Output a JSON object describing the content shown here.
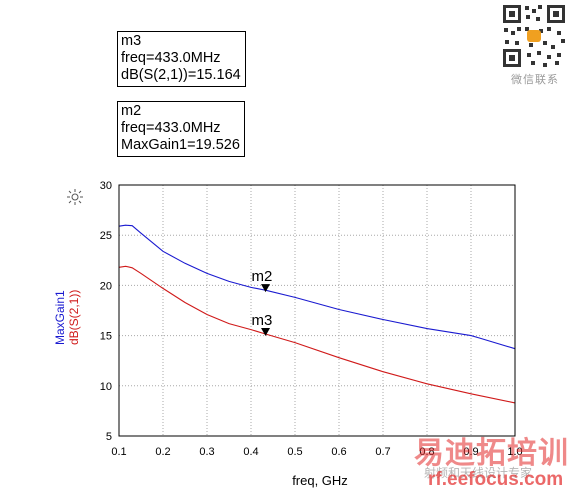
{
  "markers": [
    {
      "lines": [
        "m3",
        "freq=433.0MHz",
        "dB(S(2,1))=15.164"
      ]
    },
    {
      "lines": [
        "m2",
        "freq=433.0MHz",
        "MaxGain1=19.526"
      ]
    }
  ],
  "chart_data": {
    "type": "line",
    "title": "",
    "xlabel": "freq, GHz",
    "ylabels": [
      "MaxGain1",
      "dB(S(2,1))"
    ],
    "xlim": [
      0.1,
      1.0
    ],
    "ylim": [
      5,
      30
    ],
    "x_ticks": [
      "0.1",
      "0.2",
      "0.3",
      "0.4",
      "0.5",
      "0.6",
      "0.7",
      "0.8",
      "0.9",
      "1.0"
    ],
    "y_ticks": [
      "5",
      "10",
      "15",
      "20",
      "25",
      "30"
    ],
    "grid": true,
    "series": [
      {
        "name": "MaxGain1",
        "color": "#1a1ad0",
        "x": [
          0.1,
          0.115,
          0.13,
          0.15,
          0.2,
          0.25,
          0.3,
          0.35,
          0.4,
          0.433,
          0.5,
          0.6,
          0.7,
          0.8,
          0.9,
          0.92,
          1.0
        ],
        "y": [
          25.9,
          26.0,
          25.95,
          25.2,
          23.4,
          22.2,
          21.2,
          20.4,
          19.8,
          19.526,
          18.8,
          17.6,
          16.6,
          15.7,
          15.0,
          14.75,
          13.7
        ]
      },
      {
        "name": "dB(S(2,1))",
        "color": "#d01a1a",
        "x": [
          0.1,
          0.115,
          0.13,
          0.15,
          0.2,
          0.25,
          0.3,
          0.35,
          0.4,
          0.433,
          0.5,
          0.6,
          0.7,
          0.8,
          0.9,
          1.0
        ],
        "y": [
          21.8,
          21.9,
          21.75,
          21.2,
          19.7,
          18.3,
          17.1,
          16.2,
          15.6,
          15.164,
          14.3,
          12.8,
          11.4,
          10.2,
          9.2,
          8.3
        ]
      }
    ],
    "markers": [
      {
        "label": "m2",
        "x": 0.433,
        "y": 19.526,
        "series": "MaxGain1"
      },
      {
        "label": "m3",
        "x": 0.433,
        "y": 15.164,
        "series": "dB(S(2,1))"
      }
    ]
  },
  "watermark": {
    "qr_caption": "微信联系",
    "brand_cn": "易迪拓培训",
    "brand_sub": "射频和天线设计专家",
    "url": "rf.eefocus.com"
  }
}
